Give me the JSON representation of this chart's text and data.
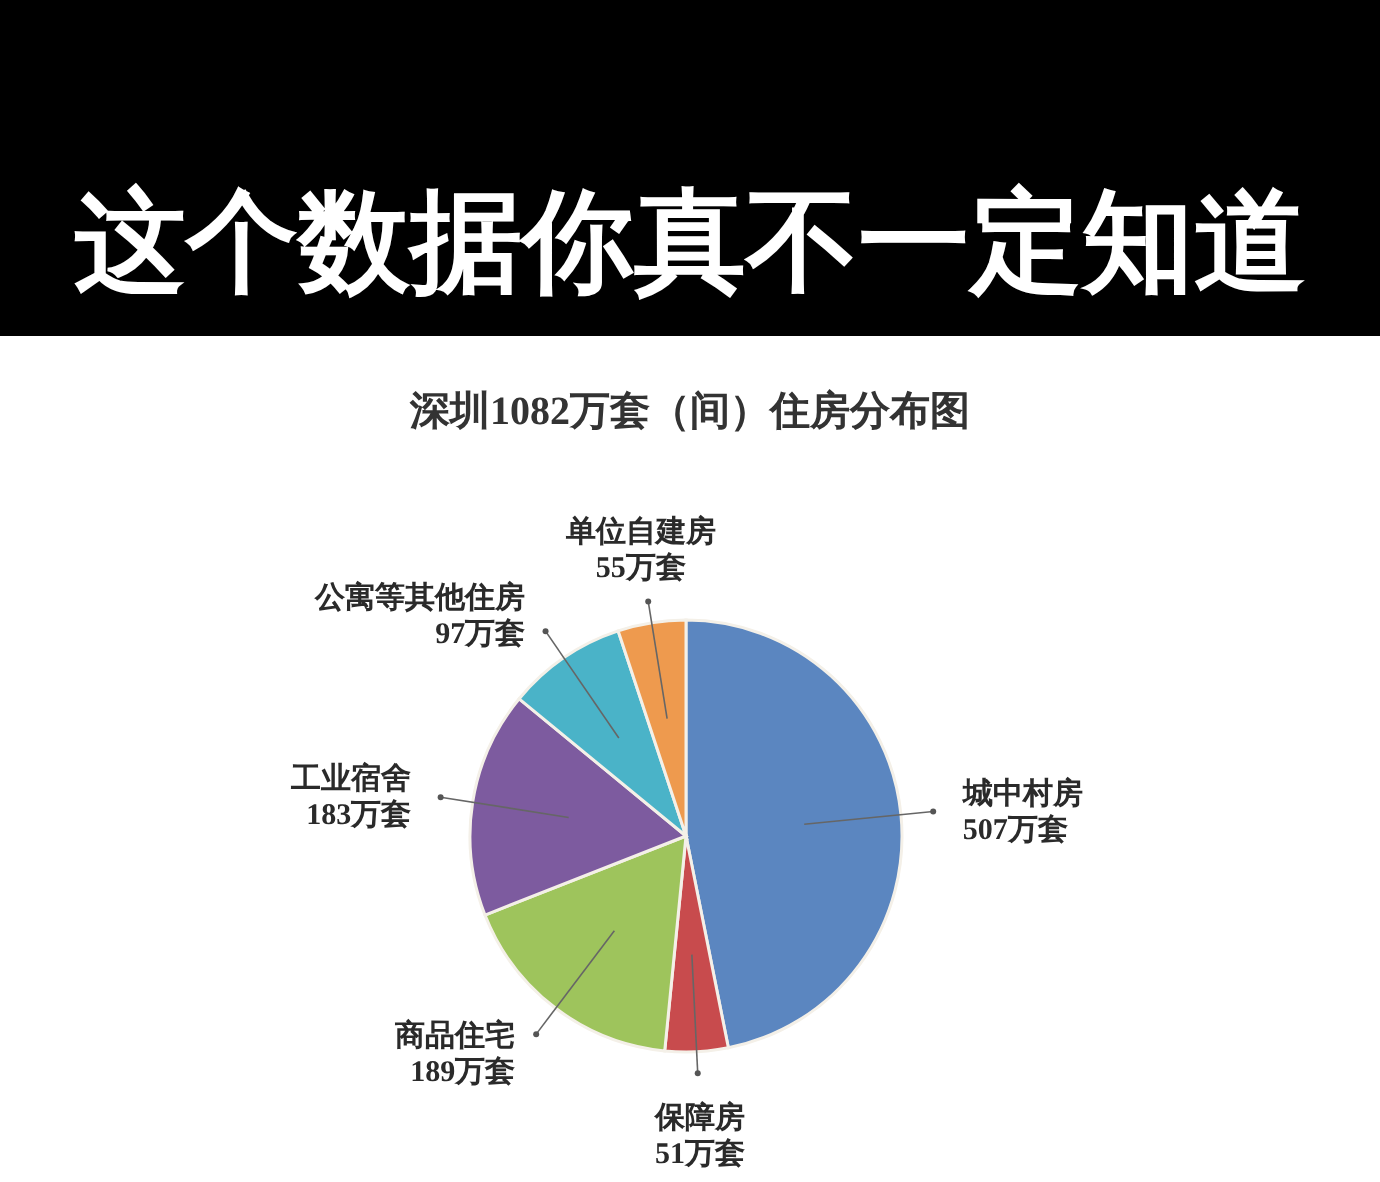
{
  "chart_data": {
    "type": "pie",
    "title": "这个数据你真不一定知道",
    "subtitle": "深圳1082万套（间）住房分布图",
    "categories": [
      "城中村房",
      "保障房",
      "商品住宅",
      "工业宿舍",
      "公寓等其他住房",
      "单位自建房"
    ],
    "values": [
      507,
      51,
      189,
      183,
      97,
      55
    ],
    "value_labels": [
      "507万套",
      "51万套",
      "189万套",
      "183万套",
      "97万套",
      "55万套"
    ],
    "colors": [
      "#5b86c0",
      "#c84b4d",
      "#9ec45c",
      "#7d5b9f",
      "#4ab3c8",
      "#ee9a4e"
    ]
  }
}
